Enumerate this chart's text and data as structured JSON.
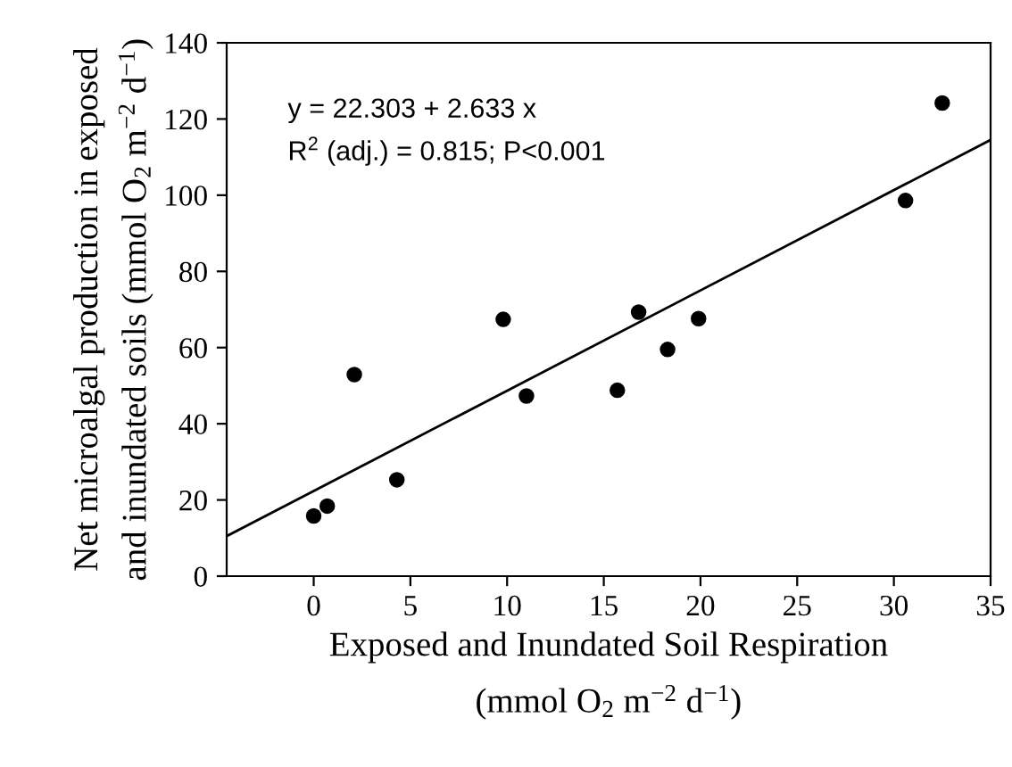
{
  "chart_data": {
    "type": "scatter",
    "xlabel": "Exposed and Inundated Soil Respiration\n(mmol O$_{2}$ m$^{−2}$ d$^{−1}$)",
    "ylabel": "Net microalgal production in exposed\nand inundated soils (mmol O$_{2}$ m$^{−2}$ d$^{−1}$)",
    "series": [
      {
        "color": "#000000",
        "marker": "circle",
        "x": [
          0.0,
          0.7,
          2.1,
          4.3,
          9.8,
          11.0,
          15.7,
          16.8,
          18.3,
          19.9,
          30.6,
          32.5
        ],
        "values": [
          15.8,
          18.4,
          52.9,
          25.3,
          67.4,
          47.3,
          48.8,
          69.3,
          59.5,
          67.6,
          98.6,
          124.2
        ]
      },
      {
        "type": "line",
        "color": "#000000",
        "line_style": "solid",
        "x": [
          -4.5,
          35
        ],
        "values": [
          10.5,
          114.5
        ]
      }
    ],
    "annotations": [
      "y = 22.303 + 2.633 x",
      "R$^{2}$ (adj.) = 0.815; P<0.001"
    ],
    "xlim": [
      -4.5,
      35
    ],
    "xticks": [
      0,
      5,
      10,
      15,
      20,
      25,
      30,
      35
    ],
    "ylim": [
      0,
      140
    ],
    "yticks": [
      0,
      20,
      40,
      60,
      80,
      100,
      120,
      140
    ],
    "grid": false,
    "legend": false
  }
}
